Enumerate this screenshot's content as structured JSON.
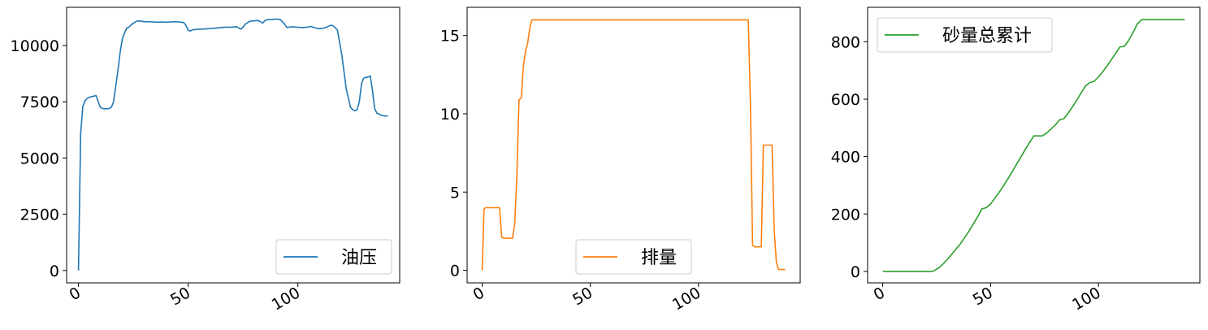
{
  "chart_data": [
    {
      "type": "line",
      "title": "",
      "xlabel": "",
      "ylabel": "",
      "xlim": [
        -5.4,
        146.4
      ],
      "ylim": [
        -550,
        11700
      ],
      "xticks": [
        0,
        50,
        100
      ],
      "xtick_labels": [
        "0",
        "50",
        "100"
      ],
      "yticks": [
        0,
        2500,
        5000,
        7500,
        10000
      ],
      "ytick_labels": [
        "0",
        "2500",
        "5000",
        "7500",
        "10000"
      ],
      "grid": false,
      "legend_position": "lower-right",
      "series": [
        {
          "name": "油压",
          "color": "#1f77b4",
          "x": [
            0,
            1,
            2,
            3,
            4,
            5,
            6,
            7,
            8,
            9,
            10,
            11,
            12,
            13,
            14,
            15,
            16,
            17,
            18,
            19,
            20,
            21,
            22,
            23,
            24,
            25,
            26,
            27,
            28,
            29,
            30,
            32,
            34,
            36,
            38,
            40,
            42,
            44,
            46,
            48,
            49,
            50,
            51,
            52,
            54,
            56,
            58,
            60,
            62,
            64,
            66,
            68,
            70,
            72,
            73,
            74,
            75,
            76,
            78,
            80,
            82,
            84,
            85,
            86,
            88,
            90,
            92,
            94,
            95,
            96,
            97,
            98,
            100,
            102,
            104,
            106,
            108,
            110,
            112,
            114,
            115,
            116,
            118,
            120,
            122,
            124,
            125,
            126,
            127,
            128,
            129,
            130,
            131,
            132,
            133,
            134,
            135,
            136,
            137,
            138,
            139,
            140,
            141
          ],
          "values": [
            0,
            6100,
            7300,
            7550,
            7650,
            7700,
            7730,
            7750,
            7780,
            7500,
            7250,
            7200,
            7190,
            7190,
            7200,
            7250,
            7500,
            8200,
            8900,
            9700,
            10300,
            10550,
            10780,
            10820,
            10920,
            11000,
            11050,
            11100,
            11090,
            11080,
            11060,
            11060,
            11050,
            11040,
            11050,
            11040,
            11050,
            11060,
            11050,
            11020,
            10900,
            10680,
            10650,
            10700,
            10720,
            10730,
            10740,
            10760,
            10770,
            10790,
            10810,
            10820,
            10820,
            10840,
            10780,
            10730,
            10820,
            10950,
            11080,
            11100,
            11110,
            11000,
            11120,
            11150,
            11160,
            11180,
            11150,
            10950,
            10800,
            10820,
            10830,
            10830,
            10810,
            10800,
            10810,
            10850,
            10780,
            10750,
            10780,
            10860,
            10900,
            10880,
            10700,
            9600,
            8100,
            7250,
            7150,
            7100,
            7150,
            7500,
            8300,
            8550,
            8580,
            8600,
            8650,
            8000,
            7200,
            7000,
            6950,
            6900,
            6880,
            6870,
            6870
          ]
        }
      ]
    },
    {
      "type": "line",
      "title": "",
      "xlabel": "",
      "ylabel": "",
      "xlim": [
        -7,
        147
      ],
      "ylim": [
        -0.8,
        16.8
      ],
      "xticks": [
        0,
        50,
        100
      ],
      "xtick_labels": [
        "0",
        "50",
        "100"
      ],
      "yticks": [
        0,
        5,
        10,
        15
      ],
      "ytick_labels": [
        "0",
        "5",
        "10",
        "15"
      ],
      "grid": false,
      "legend_position": "lower-center",
      "series": [
        {
          "name": "排量",
          "color": "#ff7f0e",
          "x": [
            0,
            0.8,
            1.5,
            2,
            3,
            4,
            5,
            6,
            7,
            8,
            9,
            10,
            11,
            12,
            13,
            14,
            15,
            16,
            17,
            18,
            19,
            20,
            21,
            22,
            23,
            24,
            30,
            40,
            50,
            60,
            70,
            80,
            90,
            100,
            110,
            120,
            121,
            122,
            123,
            124,
            125,
            126,
            127,
            128,
            129,
            130,
            131,
            132,
            133,
            134,
            135,
            136,
            137,
            138,
            139,
            140
          ],
          "values": [
            0,
            3.9,
            4.0,
            4.0,
            4.0,
            4.0,
            4.0,
            4.0,
            4.0,
            4.0,
            2.1,
            2.05,
            2.05,
            2.05,
            2.05,
            2.05,
            3.0,
            6.0,
            10.9,
            11.0,
            13.0,
            14.0,
            14.5,
            15.5,
            16.0,
            16.0,
            16.0,
            16.0,
            16.0,
            16.0,
            16.0,
            16.0,
            16.0,
            16.0,
            16.0,
            16.0,
            16.0,
            16.0,
            16.0,
            10.5,
            1.6,
            1.5,
            1.5,
            1.5,
            1.5,
            8.0,
            8.0,
            8.0,
            8.0,
            8.0,
            2.5,
            0.5,
            0.05,
            0.05,
            0.05,
            0.05
          ]
        }
      ]
    },
    {
      "type": "line",
      "title": "",
      "xlabel": "",
      "ylabel": "",
      "xlim": [
        -7,
        147
      ],
      "ylim": [
        -40,
        920
      ],
      "xticks": [
        0,
        50,
        100
      ],
      "xtick_labels": [
        "0",
        "50",
        "100"
      ],
      "yticks": [
        0,
        200,
        400,
        600,
        800
      ],
      "ytick_labels": [
        "0",
        "200",
        "400",
        "600",
        "800"
      ],
      "grid": false,
      "legend_position": "upper-left",
      "series": [
        {
          "name": "砂量总累计",
          "color": "#2ca02c",
          "x": [
            0,
            5,
            10,
            15,
            20,
            22,
            23,
            24,
            26,
            28,
            30,
            32,
            34,
            36,
            38,
            40,
            42,
            44,
            46,
            48,
            50,
            52,
            54,
            56,
            58,
            60,
            62,
            64,
            66,
            68,
            70,
            72,
            74,
            76,
            78,
            80,
            82,
            84,
            86,
            88,
            90,
            92,
            94,
            96,
            98,
            100,
            102,
            104,
            106,
            108,
            110,
            112,
            114,
            116,
            118,
            120,
            125,
            130,
            135,
            140
          ],
          "values": [
            0,
            0,
            0,
            0,
            0,
            0,
            0,
            3,
            12,
            26,
            42,
            60,
            78,
            96,
            118,
            140,
            165,
            190,
            218,
            222,
            235,
            255,
            276,
            298,
            322,
            347,
            373,
            398,
            424,
            448,
            472,
            472,
            472,
            482,
            496,
            510,
            528,
            532,
            552,
            574,
            597,
            622,
            646,
            658,
            662,
            678,
            696,
            716,
            738,
            760,
            782,
            784,
            805,
            832,
            862,
            877,
            877,
            877,
            877,
            877
          ]
        }
      ]
    }
  ]
}
